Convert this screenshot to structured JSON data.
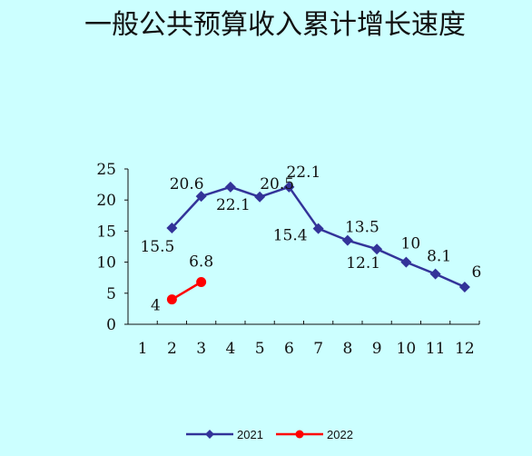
{
  "chart_data": {
    "type": "line",
    "title": "一般公共预算收入累计增长速度",
    "xlabel": "",
    "ylabel": "",
    "x": [
      1,
      2,
      3,
      4,
      5,
      6,
      7,
      8,
      9,
      10,
      11,
      12
    ],
    "x_tick_labels": [
      "1",
      "2",
      "3",
      "4",
      "5",
      "6",
      "7",
      "8",
      "9",
      "10",
      "11",
      "12"
    ],
    "ylim": [
      0,
      25
    ],
    "y_ticks": [
      0,
      5,
      10,
      15,
      20,
      25
    ],
    "y_tick_labels": [
      "0",
      "5",
      "10",
      "15",
      "20",
      "25"
    ],
    "grid": false,
    "legend_position": "bottom",
    "series": [
      {
        "name": "2021",
        "color": "#333399",
        "marker": "diamond",
        "x": [
          2,
          3,
          4,
          5,
          6,
          7,
          8,
          9,
          10,
          11,
          12
        ],
        "values": [
          15.5,
          20.6,
          22.1,
          20.5,
          22.1,
          15.4,
          13.5,
          12.1,
          10,
          8.1,
          6
        ],
        "labels": [
          "15.5",
          "20.6",
          "22.1",
          "20.5",
          "22.1",
          "15.4",
          "13.5",
          "12.1",
          "10",
          "8.1",
          "6"
        ]
      },
      {
        "name": "2022",
        "color": "#ff0000",
        "marker": "circle",
        "x": [
          2,
          3
        ],
        "values": [
          4,
          6.8
        ],
        "labels": [
          "4",
          "6.8"
        ]
      }
    ]
  }
}
